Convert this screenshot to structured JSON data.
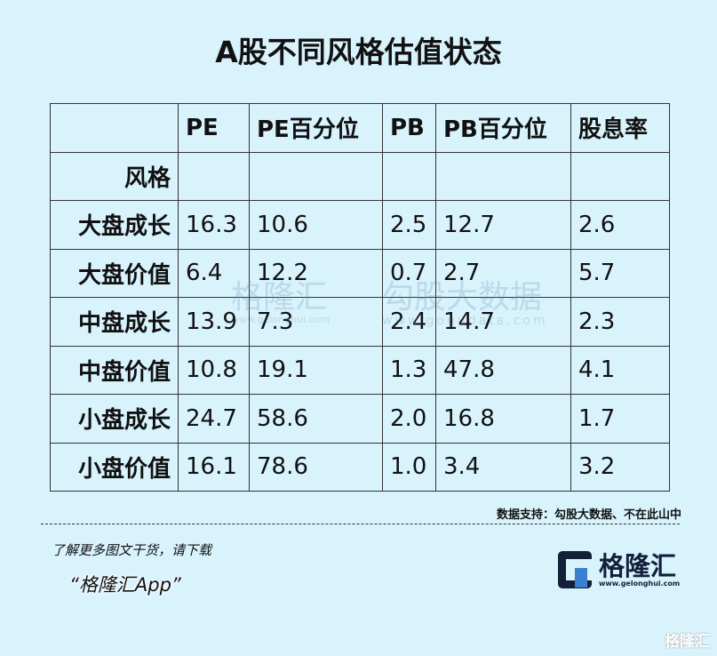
{
  "title": "A股不同风格估值状态",
  "table": {
    "headers": [
      "",
      "PE",
      "PE百分位",
      "PB",
      "PB百分位",
      "股息率"
    ],
    "subheader": "风格",
    "rows": [
      [
        "大盘成长",
        "16.3",
        "10.6",
        "2.5",
        "12.7",
        "2.6"
      ],
      [
        "大盘价值",
        "6.4",
        "12.2",
        "0.7",
        "2.7",
        "5.7"
      ],
      [
        "中盘成长",
        "13.9",
        "7.3",
        "2.4",
        "14.7",
        "2.3"
      ],
      [
        "中盘价值",
        "10.8",
        "19.1",
        "1.3",
        "47.8",
        "4.1"
      ],
      [
        "小盘成长",
        "24.7",
        "58.6",
        "2.0",
        "16.8",
        "1.7"
      ],
      [
        "小盘价值",
        "16.1",
        "78.6",
        "1.0",
        "3.4",
        "3.2"
      ]
    ]
  },
  "watermark": {
    "brand1": "格隆汇",
    "url1": "www.gelonghui.com",
    "brand2": "勾股大数据",
    "url2": "www.gogudata.com"
  },
  "source": "数据支持：勾股大数据、不在此山中",
  "promo": {
    "line1": "了解更多图文干货，请下载",
    "line2": "“格隆汇App”"
  },
  "logo": {
    "name": "格隆汇",
    "url": "www.gelonghui.com",
    "dark": "#13203a",
    "accent": "#3a7fd0"
  },
  "corner_mark": "格隆汇",
  "colors": {
    "background": "#d9f3fd"
  }
}
